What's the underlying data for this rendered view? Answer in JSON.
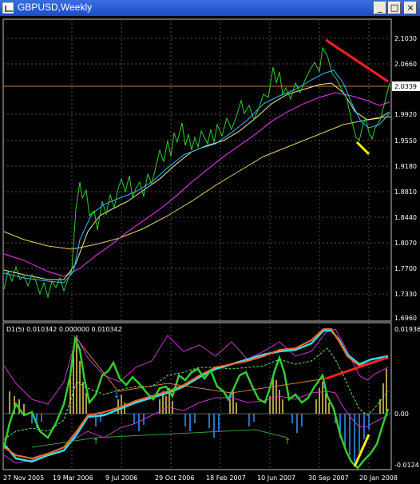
{
  "window": {
    "title": "GBPUSD,Weekly",
    "buttons": {
      "minimize": "_",
      "maximize": "□",
      "close": "×"
    }
  },
  "price_axis": {
    "labels": [
      "2.1030",
      "2.0660",
      "1.9920",
      "1.9550",
      "1.9180",
      "1.8810",
      "1.8440",
      "1.8070",
      "1.7700",
      "1.7330",
      "1.6960"
    ],
    "current_price": "2.0339",
    "current_price_color": "#ffffff"
  },
  "indicator": {
    "header": "D1(5) 0.010342 0.000000 0.010342",
    "axis_labels": [
      "0.01936",
      "0.00",
      "-0.0124"
    ]
  },
  "time_axis": {
    "labels": [
      "27 Nov 2005",
      "19 Mar 2006",
      "9 Jul 2006",
      "29 Oct 2006",
      "18 Feb 2007",
      "10 Jun 2007",
      "30 Sep 2007",
      "20 Jan 2008"
    ]
  },
  "colors": {
    "price_line": "#33cc33",
    "ma_fast": "#33bbff",
    "ma_mid": "#f0f0a0",
    "ma_slow": "#cc33cc",
    "ma_long": "#e8d060",
    "grid": "#505050",
    "red_annotation": "#ff2020",
    "yellow_annotation": "#ffee00",
    "hist_pos": "#e8d060",
    "hist_neg": "#3399ff",
    "cyan_band": "#33ddee",
    "orange_band": "#ff6622"
  }
}
